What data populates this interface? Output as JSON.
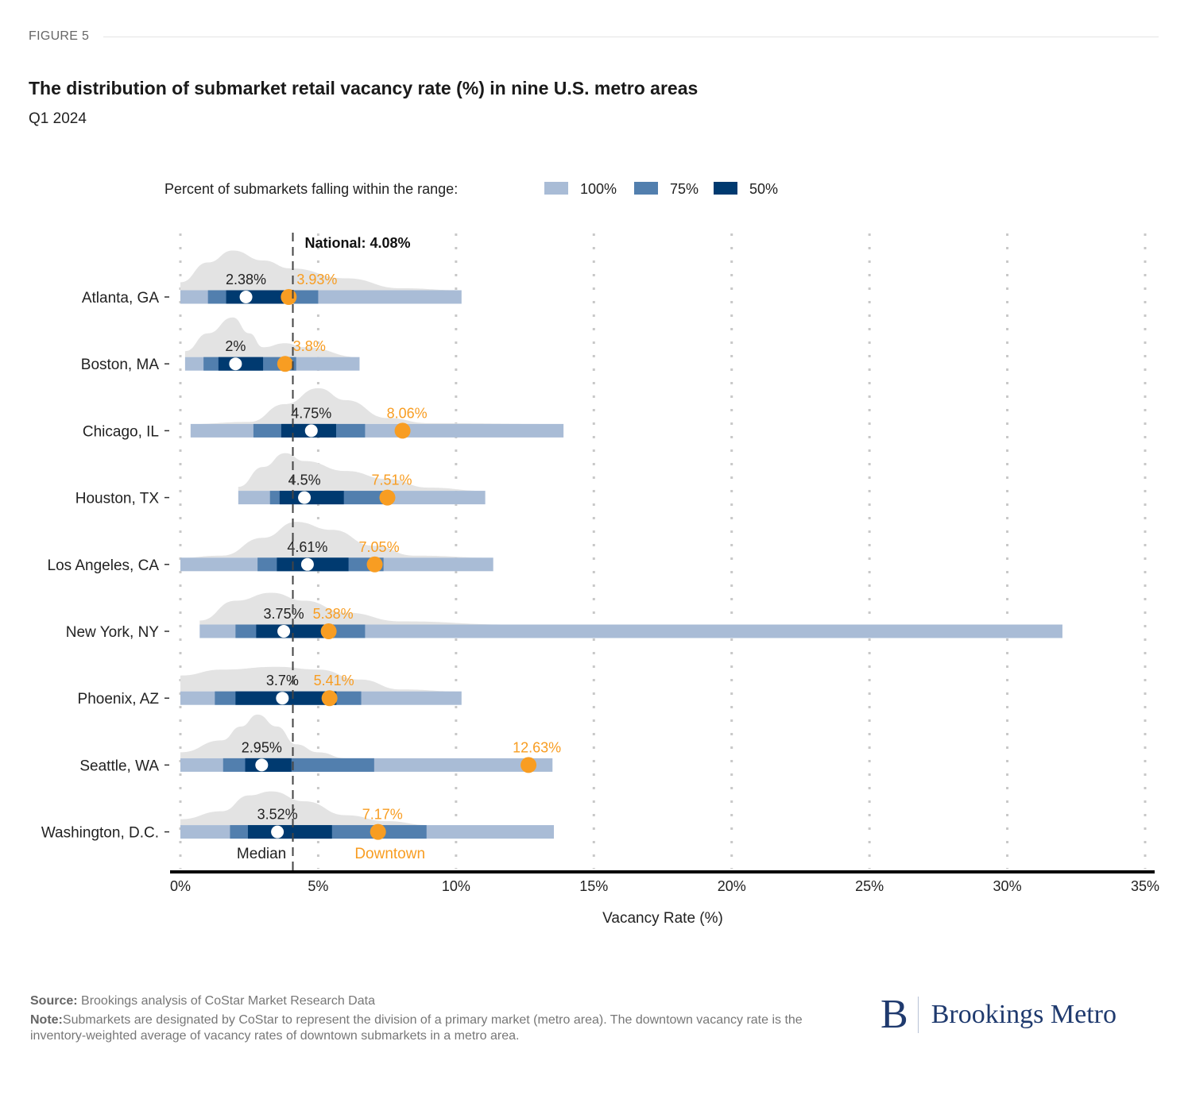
{
  "figure_label": "FIGURE 5",
  "title": "The distribution of submarket retail vacancy rate (%) in nine U.S. metro areas",
  "subtitle": "Q1 2024",
  "legend": {
    "label": "Percent of submarkets falling within the range:",
    "items": [
      {
        "label": "100%",
        "color": "#a9bcd6"
      },
      {
        "label": "75%",
        "color": "#527fae"
      },
      {
        "label": "50%",
        "color": "#003a70"
      }
    ]
  },
  "annotations": {
    "national_label": "National: 4.08%",
    "median_label": "Median",
    "downtown_label": "Downtown"
  },
  "colors": {
    "range_100": "#a9bcd6",
    "range_75": "#527fae",
    "range_50": "#003a70",
    "downtown": "#f89d22",
    "median": "#ffffff",
    "density": "#e3e3e3"
  },
  "footer": {
    "source_label": "Source:",
    "source_text": " Brookings analysis of CoStar Market Research Data",
    "note_label": "Note:",
    "note_text": "Submarkets are designated by CoStar to represent the division of a primary market (metro area). The downtown vacancy rate is the inventory-weighted average of vacancy rates of downtown submarkets in a metro area."
  },
  "logo": {
    "mark": "B",
    "text": "Brookings Metro"
  },
  "chart_data": {
    "type": "interval-distribution",
    "title": "The distribution of submarket retail vacancy rate (%) in nine U.S. metro areas",
    "subtitle": "Q1 2024",
    "xlabel": "Vacancy Rate (%)",
    "ylabel": "",
    "xlim": [
      0,
      35
    ],
    "x_ticks": [
      0,
      5,
      10,
      15,
      20,
      25,
      30,
      35
    ],
    "x_tick_labels": [
      "0%",
      "5%",
      "10%",
      "15%",
      "20%",
      "25%",
      "30%",
      "35%"
    ],
    "grid": "vertical dotted",
    "legend_position": "top",
    "national_rate": 4.08,
    "categories": [
      "Atlanta, GA",
      "Boston, MA",
      "Chicago, IL",
      "Houston, TX",
      "Los Angeles, CA",
      "New York, NY",
      "Phoenix, AZ",
      "Seattle, WA",
      "Washington, D.C."
    ],
    "series": [
      {
        "metro": "Atlanta, GA",
        "range_100": [
          0.0,
          10.2
        ],
        "range_75": [
          1.0,
          5.0
        ],
        "range_50": [
          1.66,
          3.9
        ],
        "median": 2.38,
        "median_label": "2.38%",
        "downtown": 3.93,
        "downtown_label": "3.93%",
        "density_peak": 1.9,
        "density": [
          [
            0,
            0.2
          ],
          [
            1,
            0.7
          ],
          [
            1.9,
            1.0
          ],
          [
            3,
            0.75
          ],
          [
            4,
            0.55
          ],
          [
            6,
            0.3
          ],
          [
            8,
            0.05
          ],
          [
            10.2,
            0
          ]
        ]
      },
      {
        "metro": "Boston, MA",
        "range_100": [
          0.17,
          6.5
        ],
        "range_75": [
          0.84,
          4.2
        ],
        "range_50": [
          1.38,
          3.0
        ],
        "median": 2.0,
        "median_label": "2%",
        "downtown": 3.8,
        "downtown_label": "3.8%",
        "density": [
          [
            0.17,
            0.15
          ],
          [
            1,
            0.6
          ],
          [
            1.9,
            1.0
          ],
          [
            2.5,
            0.6
          ],
          [
            3,
            0.25
          ],
          [
            3.8,
            0.35
          ],
          [
            4.5,
            0.25
          ],
          [
            6.5,
            0
          ]
        ]
      },
      {
        "metro": "Chicago, IL",
        "range_100": [
          0.37,
          13.9
        ],
        "range_75": [
          2.65,
          6.7
        ],
        "range_50": [
          3.66,
          5.65
        ],
        "median": 4.75,
        "median_label": "4.75%",
        "downtown": 8.06,
        "downtown_label": "8.06%",
        "density": [
          [
            0.37,
            0
          ],
          [
            2.5,
            0.05
          ],
          [
            3.8,
            0.5
          ],
          [
            5,
            0.9
          ],
          [
            6,
            0.6
          ],
          [
            7.5,
            0.15
          ],
          [
            9,
            0.02
          ],
          [
            13.9,
            0
          ]
        ]
      },
      {
        "metro": "Houston, TX",
        "range_100": [
          2.1,
          11.06
        ],
        "range_75": [
          3.25,
          7.5
        ],
        "range_50": [
          3.6,
          5.93
        ],
        "median": 4.5,
        "median_label": "4.5%",
        "downtown": 7.51,
        "downtown_label": "7.51%",
        "density": [
          [
            2.1,
            0.1
          ],
          [
            3,
            0.6
          ],
          [
            3.8,
            0.95
          ],
          [
            4.5,
            0.75
          ],
          [
            6,
            0.5
          ],
          [
            7.5,
            0.3
          ],
          [
            9,
            0.08
          ],
          [
            11.06,
            0
          ]
        ]
      },
      {
        "metro": "Los Angeles, CA",
        "range_100": [
          0.0,
          11.35
        ],
        "range_75": [
          2.8,
          7.37
        ],
        "range_50": [
          3.5,
          6.1
        ],
        "median": 4.61,
        "median_label": "4.61%",
        "downtown": 7.05,
        "downtown_label": "7.05%",
        "density": [
          [
            0,
            0
          ],
          [
            1.5,
            0.05
          ],
          [
            3,
            0.5
          ],
          [
            4.2,
            0.9
          ],
          [
            5.5,
            0.7
          ],
          [
            7,
            0.3
          ],
          [
            8.5,
            0.05
          ],
          [
            11.35,
            0
          ]
        ]
      },
      {
        "metro": "New York, NY",
        "range_100": [
          0.7,
          32.0
        ],
        "range_75": [
          2.0,
          6.7
        ],
        "range_50": [
          2.75,
          5.56
        ],
        "median": 3.75,
        "median_label": "3.75%",
        "downtown": 5.38,
        "downtown_label": "5.38%",
        "density": [
          [
            0.7,
            0.1
          ],
          [
            2,
            0.6
          ],
          [
            3.3,
            0.8
          ],
          [
            4.5,
            0.6
          ],
          [
            6,
            0.3
          ],
          [
            8,
            0.08
          ],
          [
            12,
            0
          ],
          [
            32,
            0
          ]
        ]
      },
      {
        "metro": "Phoenix, AZ",
        "range_100": [
          0.0,
          10.2
        ],
        "range_75": [
          1.25,
          6.56
        ],
        "range_50": [
          2.0,
          5.66
        ],
        "median": 3.7,
        "median_label": "3.7%",
        "downtown": 5.41,
        "downtown_label": "5.41%",
        "density": [
          [
            0,
            0.4
          ],
          [
            1.5,
            0.55
          ],
          [
            3.5,
            0.62
          ],
          [
            5,
            0.55
          ],
          [
            6.5,
            0.3
          ],
          [
            8,
            0.05
          ],
          [
            10.2,
            0
          ]
        ]
      },
      {
        "metro": "Seattle, WA",
        "range_100": [
          0.0,
          13.5
        ],
        "range_75": [
          1.55,
          7.03
        ],
        "range_50": [
          2.35,
          4.03
        ],
        "median": 2.95,
        "median_label": "2.95%",
        "downtown": 12.63,
        "downtown_label": "12.63%",
        "density": [
          [
            0,
            0.15
          ],
          [
            1.5,
            0.45
          ],
          [
            2.2,
            0.8
          ],
          [
            2.8,
            1.1
          ],
          [
            3.5,
            0.8
          ],
          [
            4.2,
            0.35
          ],
          [
            5,
            0.15
          ],
          [
            6,
            0
          ],
          [
            13.5,
            0
          ]
        ]
      },
      {
        "metro": "Washington, D.C.",
        "range_100": [
          0.0,
          13.55
        ],
        "range_75": [
          1.8,
          8.93
        ],
        "range_50": [
          2.45,
          5.5
        ],
        "median": 3.52,
        "median_label": "3.52%",
        "downtown": 7.17,
        "downtown_label": "7.17%",
        "density": [
          [
            0,
            0.15
          ],
          [
            1.5,
            0.35
          ],
          [
            2.5,
            0.75
          ],
          [
            3.3,
            0.85
          ],
          [
            4.5,
            0.6
          ],
          [
            6,
            0.25
          ],
          [
            7.5,
            0.1
          ],
          [
            9,
            0
          ],
          [
            13.55,
            0
          ]
        ]
      }
    ]
  }
}
